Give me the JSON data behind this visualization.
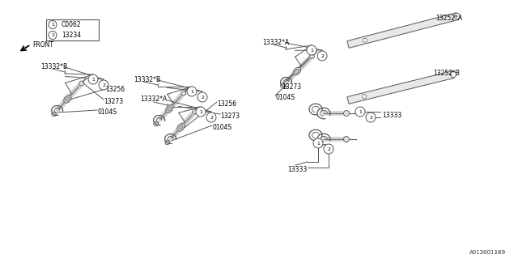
{
  "bg_color": "#ffffff",
  "line_color": "#555555",
  "text_color": "#000000",
  "watermark": "A012001169",
  "legend": [
    {
      "num": "1",
      "code": "C0062"
    },
    {
      "num": "2",
      "code": "13234"
    }
  ]
}
